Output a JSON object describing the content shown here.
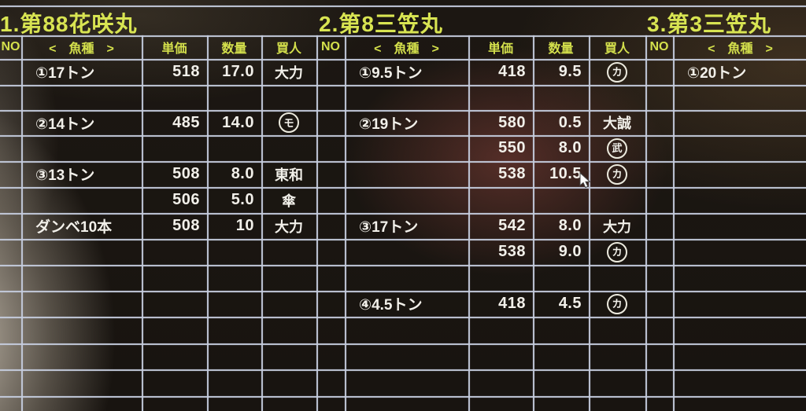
{
  "screen": {
    "background_color": "#181410",
    "grid_color": "#c6cdde",
    "header_text_color": "#d4e04c",
    "data_text_color": "#f2f0ea",
    "glare": [
      "gray-left-edge",
      "pink-center",
      "warm-top-right"
    ]
  },
  "cursor": {
    "visible": true,
    "shape": "arrow"
  },
  "headers_labels": {
    "no": "NO",
    "species": "<　魚種　>",
    "price": "単価",
    "qty": "数量",
    "buyer": "買人"
  },
  "tables": [
    {
      "title": "1.第88花咲丸",
      "headers": {
        "no": "NO",
        "species": "<　魚種　>",
        "price": "単価",
        "qty": "数量",
        "buyer": "買人"
      },
      "rows": [
        {
          "row": 1,
          "species": "①17トン",
          "price": "518",
          "qty": "17.0",
          "buyer": "大力",
          "circled": false
        },
        {
          "row": 3,
          "species": "②14トン",
          "price": "485",
          "qty": "14.0",
          "buyer": "モ",
          "circled": true
        },
        {
          "row": 5,
          "species": "③13トン",
          "price": "508",
          "qty": "8.0",
          "buyer": "東和",
          "circled": false
        },
        {
          "row": 6,
          "species": "",
          "price": "506",
          "qty": "5.0",
          "buyer": "傘",
          "circled": false
        },
        {
          "row": 7,
          "species": "ダンベ10本",
          "price": "508",
          "qty": "10",
          "buyer": "大力",
          "circled": false
        }
      ]
    },
    {
      "title": "2.第8三笠丸",
      "headers": {
        "no": "NO",
        "species": "<　魚種　>",
        "price": "単価",
        "qty": "数量",
        "buyer": "買人"
      },
      "rows": [
        {
          "row": 1,
          "species": "①9.5トン",
          "price": "418",
          "qty": "9.5",
          "buyer": "カ",
          "circled": true
        },
        {
          "row": 3,
          "species": "②19トン",
          "price": "580",
          "qty": "0.5",
          "buyer": "大誠",
          "circled": false
        },
        {
          "row": 4,
          "species": "",
          "price": "550",
          "qty": "8.0",
          "buyer": "武",
          "circled": true
        },
        {
          "row": 5,
          "species": "",
          "price": "538",
          "qty": "10.5",
          "buyer": "カ",
          "circled": true
        },
        {
          "row": 7,
          "species": "③17トン",
          "price": "542",
          "qty": "8.0",
          "buyer": "大力",
          "circled": false
        },
        {
          "row": 8,
          "species": "",
          "price": "538",
          "qty": "9.0",
          "buyer": "カ",
          "circled": true
        },
        {
          "row": 10,
          "species": "④4.5トン",
          "price": "418",
          "qty": "4.5",
          "buyer": "カ",
          "circled": true
        }
      ]
    },
    {
      "title": "3.第3三笠丸",
      "headers": {
        "no": "NO",
        "species": "<　魚種　>"
      },
      "rows": [
        {
          "row": 1,
          "species": "①20トン"
        }
      ]
    }
  ]
}
